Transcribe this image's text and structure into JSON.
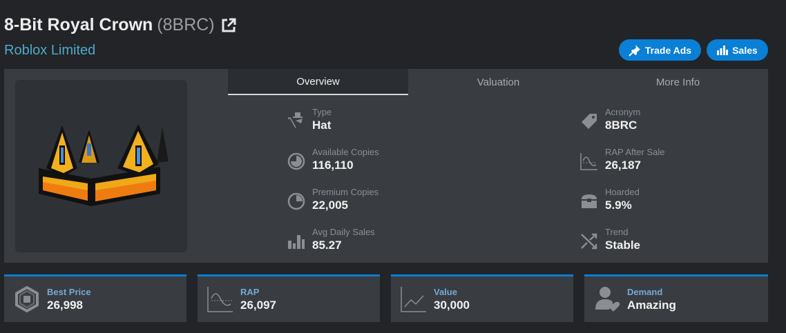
{
  "header": {
    "title": "8-Bit Royal Crown",
    "acronym": "(8BRC)",
    "subtitle": "Roblox Limited"
  },
  "buttons": {
    "trade_ads": "Trade Ads",
    "sales": "Sales"
  },
  "colors": {
    "accent": "#0a7fd6",
    "link": "#4fa9c9",
    "panel": "#393c41",
    "background": "#222428"
  },
  "tabs": [
    {
      "label": "Overview",
      "active": true
    },
    {
      "label": "Valuation"
    },
    {
      "label": "More Info"
    }
  ],
  "info_left": [
    {
      "label": "Type",
      "value": "Hat",
      "icon": "hat-cane-icon"
    },
    {
      "label": "Available Copies",
      "value": "116,110",
      "icon": "pie-chart-icon"
    },
    {
      "label": "Premium Copies",
      "value": "22,005",
      "icon": "pie-outline-icon"
    },
    {
      "label": "Avg Daily Sales",
      "value": "85.27",
      "icon": "bar-chart-icon"
    }
  ],
  "info_right": [
    {
      "label": "Acronym",
      "value": "8BRC",
      "icon": "tag-icon"
    },
    {
      "label": "RAP After Sale",
      "value": "26,187",
      "icon": "wave-chart-icon"
    },
    {
      "label": "Hoarded",
      "value": "5.9%",
      "icon": "chest-icon"
    },
    {
      "label": "Trend",
      "value": "Stable",
      "icon": "shuffle-icon"
    }
  ],
  "cards": [
    {
      "label": "Best Price",
      "value": "26,998",
      "icon": "robux-icon"
    },
    {
      "label": "RAP",
      "value": "26,097",
      "icon": "wave-chart-icon"
    },
    {
      "label": "Value",
      "value": "30,000",
      "icon": "line-chart-icon"
    },
    {
      "label": "Demand",
      "value": "Amazing",
      "icon": "user-heart-icon"
    }
  ]
}
